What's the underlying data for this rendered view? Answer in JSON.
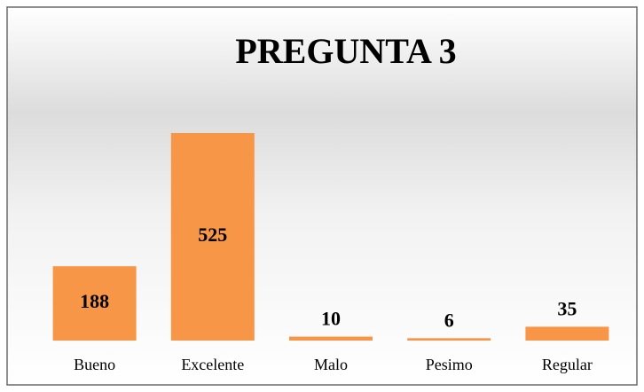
{
  "chart_data": {
    "type": "bar",
    "title": "PREGUNTA 3",
    "categories": [
      "Bueno",
      "Excelente",
      "Malo",
      "Pesimo",
      "Regular"
    ],
    "values": [
      188,
      525,
      10,
      6,
      35
    ],
    "color": "#f79646"
  }
}
